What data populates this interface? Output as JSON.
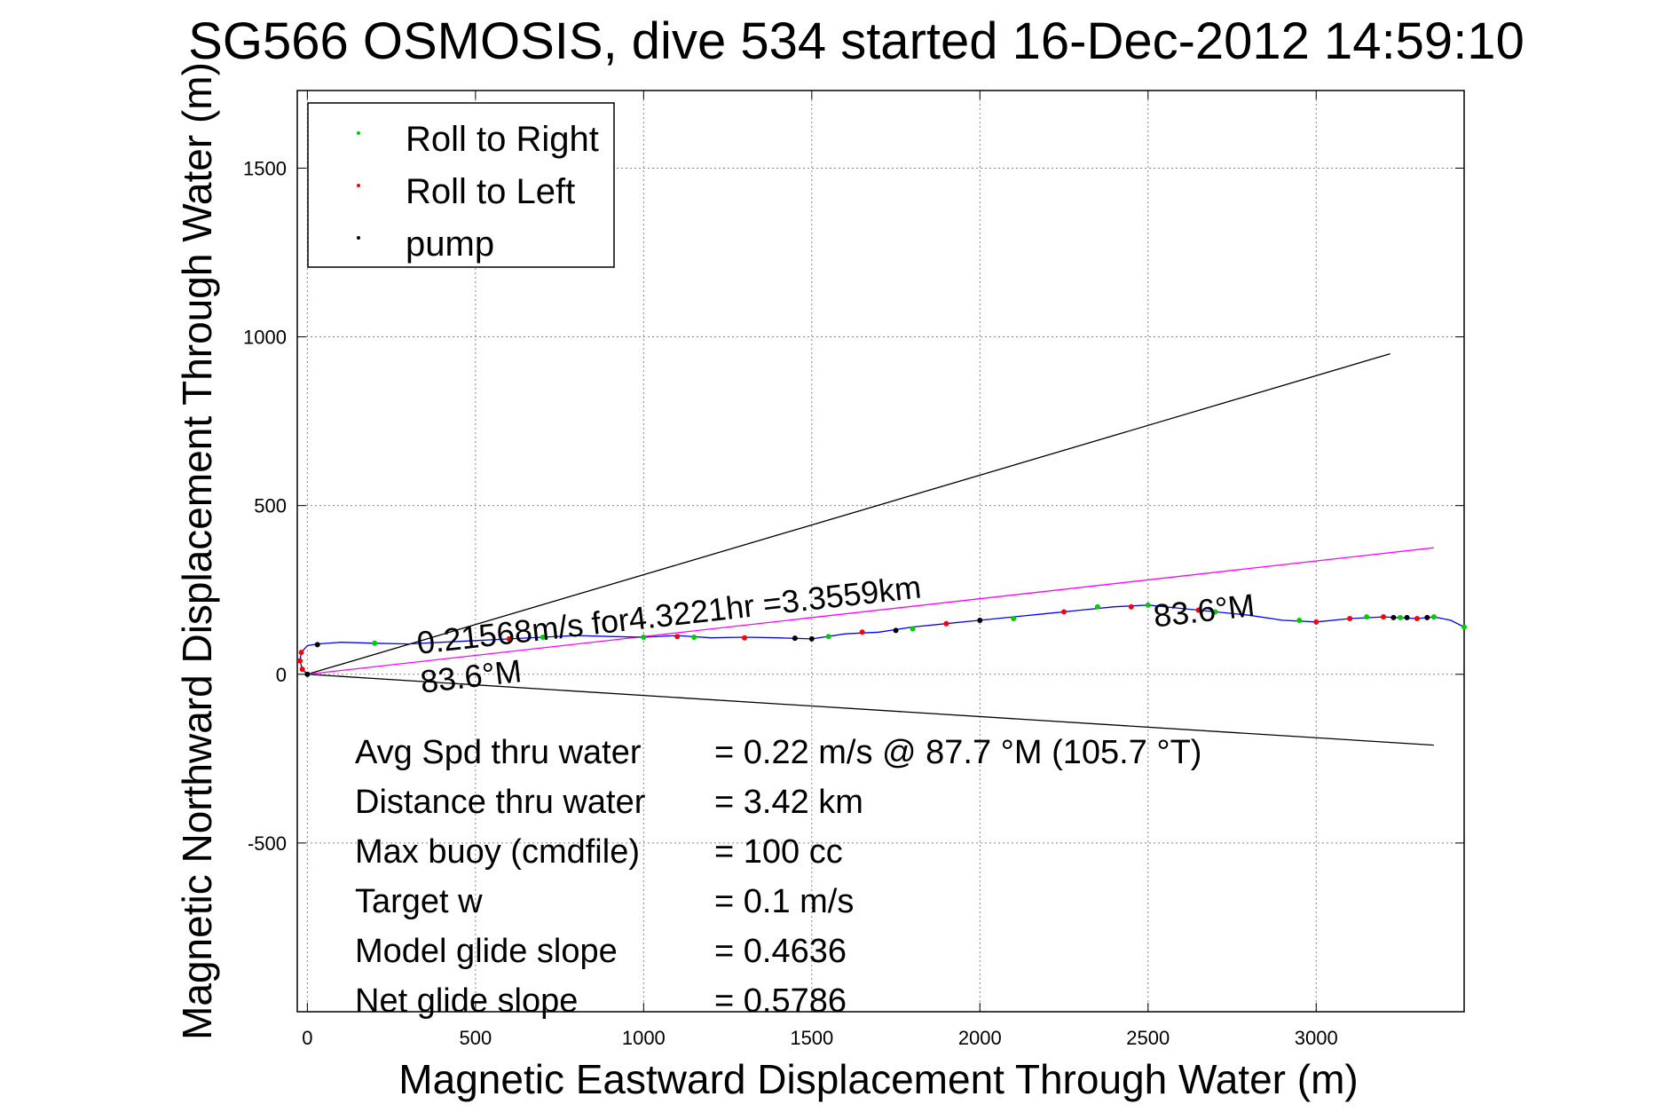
{
  "chart_data": {
    "type": "line",
    "title": "SG566 OSMOSIS, dive 534 started 16-Dec-2012 14:59:10",
    "xlabel": "Magnetic Eastward Displacement Through Water (m)",
    "ylabel": "Magnetic Northward Displacement Through Water (m)",
    "xlim": [
      -30,
      3440
    ],
    "ylim": [
      -1000,
      1730
    ],
    "xticks": [
      0,
      500,
      1000,
      1500,
      2000,
      2500,
      3000
    ],
    "yticks": [
      -500,
      0,
      500,
      1000,
      1500
    ],
    "grid": true,
    "legend": {
      "placement": "top-left",
      "entries": [
        {
          "label": "Roll to Right",
          "color": "#00cc00"
        },
        {
          "label": "Roll to Left",
          "color": "#ff0000"
        },
        {
          "label": "pump",
          "color": "#000000"
        }
      ]
    },
    "track": {
      "color": "#0000ff",
      "x": [
        0,
        -15,
        -22,
        -18,
        0,
        30,
        100,
        200,
        300,
        400,
        500,
        600,
        700,
        800,
        900,
        1000,
        1100,
        1200,
        1300,
        1400,
        1500,
        1600,
        1700,
        1800,
        1900,
        2000,
        2100,
        2200,
        2300,
        2400,
        2500,
        2600,
        2700,
        2800,
        2900,
        3000,
        3100,
        3200,
        3300,
        3350,
        3400,
        3440
      ],
      "y": [
        0,
        15,
        40,
        65,
        85,
        90,
        95,
        92,
        90,
        95,
        100,
        105,
        110,
        115,
        112,
        110,
        115,
        108,
        110,
        108,
        105,
        120,
        125,
        140,
        150,
        160,
        170,
        180,
        190,
        200,
        205,
        195,
        185,
        175,
        160,
        155,
        165,
        170,
        165,
        170,
        160,
        140
      ]
    },
    "roll_right_points": {
      "x": [
        200,
        700,
        1000,
        1150,
        1550,
        1800,
        2100,
        2350,
        2500,
        2700,
        2950,
        3150,
        3250,
        3350,
        3440
      ],
      "y": [
        92,
        110,
        110,
        110,
        112,
        135,
        165,
        200,
        205,
        185,
        160,
        170,
        168,
        170,
        140
      ]
    },
    "roll_left_points": {
      "x": [
        -15,
        -22,
        -18,
        600,
        1100,
        1300,
        1650,
        1900,
        2250,
        2450,
        2650,
        3000,
        3100,
        3200,
        3300
      ],
      "y": [
        15,
        40,
        65,
        105,
        112,
        108,
        125,
        150,
        185,
        200,
        190,
        155,
        165,
        170,
        165
      ]
    },
    "pump_points": {
      "x": [
        0,
        30,
        1450,
        1500,
        1750,
        2000,
        3230,
        3270,
        3330
      ],
      "y": [
        0,
        88,
        107,
        105,
        130,
        160,
        168,
        168,
        168
      ]
    },
    "lines": [
      {
        "name": "upper-bound",
        "color": "#000000",
        "x": [
          0,
          3220
        ],
        "y": [
          0,
          950
        ]
      },
      {
        "name": "lower-bound",
        "color": "#000000",
        "x": [
          0,
          3350
        ],
        "y": [
          0,
          -210
        ]
      },
      {
        "name": "mean-heading",
        "color": "#ff00ff",
        "x": [
          0,
          3350
        ],
        "y": [
          0,
          375
        ]
      }
    ],
    "annotations": [
      {
        "text": "0.21568m/s for4.3221hr =3.3559km",
        "x": 330,
        "y": 60,
        "rotate": -6.4
      },
      {
        "text": "83.6°M",
        "x": 340,
        "y": -55,
        "rotate": -6.4
      },
      {
        "text": "83.6°M",
        "x": 2520,
        "y": 140,
        "rotate": -6.4
      }
    ],
    "stats": [
      {
        "label": "Avg Spd thru water",
        "value": "=  0.22 m/s @  87.7 °M (105.7 °T)"
      },
      {
        "label": "Distance thru water",
        "value": "=  3.42 km"
      },
      {
        "label": "Max buoy (cmdfile)",
        "value": "= 100 cc"
      },
      {
        "label": "Target w",
        "value": "= 0.1 m/s"
      },
      {
        "label": "Model glide slope",
        "value": "= 0.4636"
      },
      {
        "label": "Net glide slope",
        "value": "= 0.5786"
      }
    ]
  }
}
